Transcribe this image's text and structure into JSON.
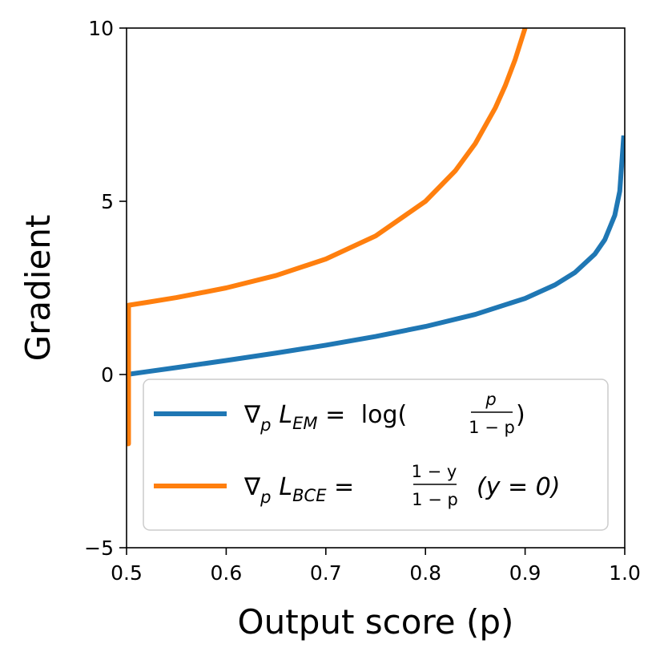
{
  "chart_data": {
    "type": "line",
    "xlabel": "Output score (p)",
    "ylabel": "Gradient",
    "xlim": [
      0.5,
      1.0
    ],
    "ylim": [
      -5,
      10
    ],
    "xticks": [
      "0.5",
      "0.6",
      "0.7",
      "0.8",
      "0.9",
      "1.0"
    ],
    "yticks": [
      "−5",
      "0",
      "5",
      "10"
    ],
    "xtick_values": [
      0.5,
      0.6,
      0.7,
      0.8,
      0.9,
      1.0
    ],
    "ytick_values": [
      -5,
      0,
      5,
      10
    ],
    "grid": false,
    "legend_position": "lower-right",
    "series": [
      {
        "color": "#1f77b4",
        "legend": {
          "nabla": "∇",
          "sub": "p",
          "L": "L",
          "Lsub": "EM",
          "eq": " = ",
          "fn": "log(",
          "num": "p",
          "den": "1 − p",
          "close": ")"
        },
        "x": [
          0.5,
          0.52,
          0.55,
          0.6,
          0.65,
          0.7,
          0.75,
          0.8,
          0.85,
          0.9,
          0.93,
          0.95,
          0.97,
          0.98,
          0.99,
          0.995,
          0.999
        ],
        "y": [
          0.0,
          0.08,
          0.2,
          0.405,
          0.619,
          0.847,
          1.099,
          1.386,
          1.735,
          2.197,
          2.587,
          2.944,
          3.476,
          3.892,
          4.595,
          5.293,
          6.9
        ]
      },
      {
        "color": "#ff7f0e",
        "legend": {
          "nabla": "∇",
          "sub": "p",
          "L": "L",
          "Lsub": "BCE",
          "eq": " = ",
          "num": "1 − y",
          "den": "1 − p",
          "cond": "(y = 0)"
        },
        "x": [
          0.5,
          0.502,
          0.502,
          0.52,
          0.55,
          0.6,
          0.65,
          0.7,
          0.75,
          0.8,
          0.83,
          0.85,
          0.87,
          0.88,
          0.89,
          0.9
        ],
        "y": [
          -2.0,
          -2.0,
          2.0,
          2.08,
          2.22,
          2.5,
          2.857,
          3.333,
          4.0,
          5.0,
          5.882,
          6.667,
          7.692,
          8.333,
          9.091,
          10.0
        ]
      }
    ]
  }
}
